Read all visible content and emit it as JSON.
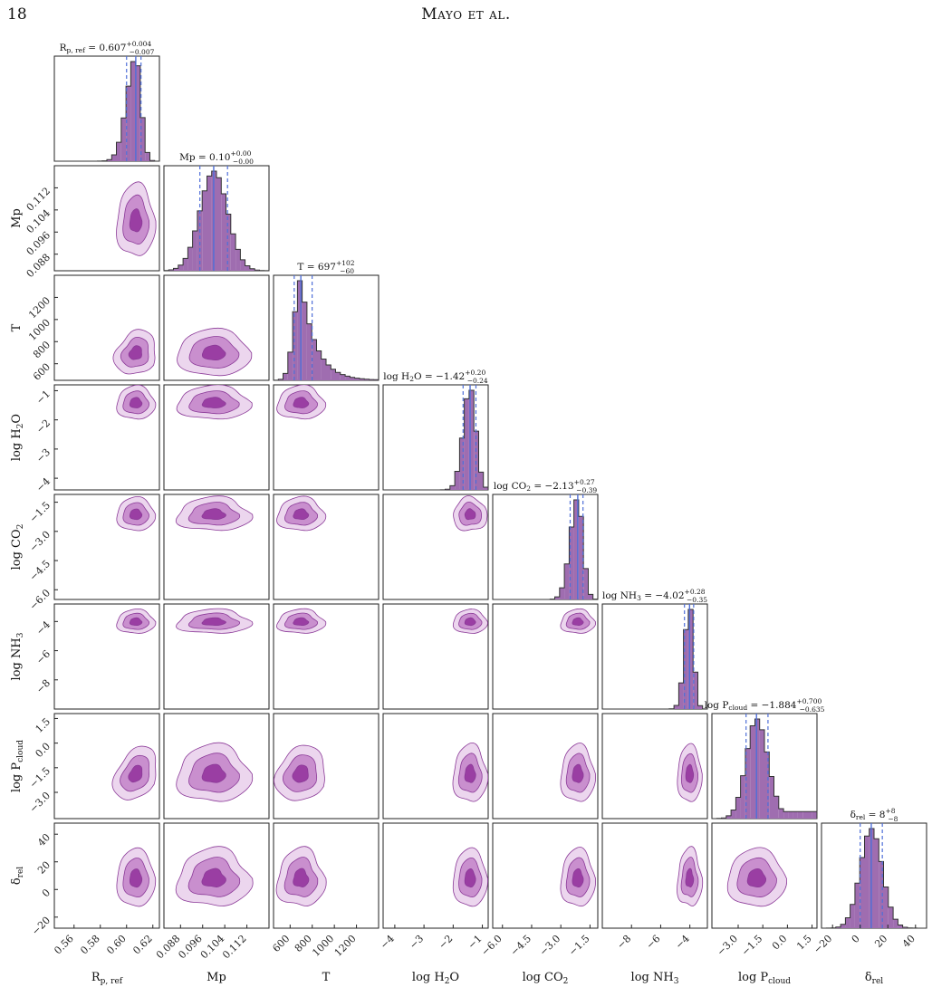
{
  "page": {
    "number": "18",
    "running_head": "Mayo et al."
  },
  "colors": {
    "hist_fill": "#9f6db0",
    "contour_outer": "#ecd6ee",
    "contour_mid": "#c98fce",
    "contour_inner": "#9a3ea3",
    "contour_line": "#8b3a98",
    "median_line": "#4f6fd8",
    "quantile_line": "#4f6fd8"
  },
  "chart_data": {
    "type": "corner",
    "parameters": [
      {
        "key": "rp",
        "label": "R_p, ref",
        "label_main": "R",
        "label_sub": "p, ref",
        "range": [
          0.545,
          0.625
        ],
        "ticks": [
          "0.56",
          "0.58",
          "0.60",
          "0.62"
        ],
        "median": 0.607,
        "q_low": 0.6,
        "q_high": 0.611,
        "title": "R_p, ref = 0.607 +0.004 −0.007",
        "title_main": "R",
        "title_sub": "p, ref",
        "title_value": " = 0.607",
        "title_plus": "+0.004",
        "title_minus": "−0.007"
      },
      {
        "key": "mp",
        "label": "Mp",
        "label_main": "Mp",
        "label_sub": "",
        "range": [
          0.082,
          0.12
        ],
        "ticks": [
          "0.088",
          "0.096",
          "0.104",
          "0.112"
        ],
        "median": 0.1,
        "q_low": 0.095,
        "q_high": 0.105,
        "title": "Mp = 0.10 +0.00 −0.00",
        "title_main": "Mp",
        "title_sub": "",
        "title_value": " = 0.10",
        "title_plus": "+0.00",
        "title_minus": "−0.00"
      },
      {
        "key": "t",
        "label": "T",
        "label_main": "T",
        "label_sub": "",
        "range": [
          450,
          1400
        ],
        "ticks": [
          "600",
          "800",
          "1000",
          "1200"
        ],
        "median": 697,
        "q_low": 637,
        "q_high": 799,
        "title": "T = 697 +102 −60",
        "title_main": "T",
        "title_sub": "",
        "title_value": " = 697",
        "title_plus": "+102",
        "title_minus": "−60"
      },
      {
        "key": "h2o",
        "label": "log H2O",
        "label_main": "log H",
        "label_sub": "2",
        "label_tail": "O",
        "range": [
          -4.4,
          -0.8
        ],
        "ticks": [
          "−4",
          "−3",
          "−2",
          "−1"
        ],
        "tick_values": [
          -4,
          -3,
          -2,
          -1
        ],
        "median": -1.42,
        "q_low": -1.66,
        "q_high": -1.22,
        "title": "log H2O = −1.42 +0.20 −0.24",
        "title_main": "log H",
        "title_sub": "2",
        "title_tail": "O",
        "title_value": " = −1.42",
        "title_plus": "+0.20",
        "title_minus": "−0.24"
      },
      {
        "key": "co2",
        "label": "log CO2",
        "label_main": "log CO",
        "label_sub": "2",
        "range": [
          -6.5,
          -1.1
        ],
        "ticks": [
          "−6.0",
          "−4.5",
          "−3.0",
          "−1.5"
        ],
        "tick_values": [
          -6.0,
          -4.5,
          -3.0,
          -1.5
        ],
        "median": -2.13,
        "q_low": -2.52,
        "q_high": -1.86,
        "title": "log CO2 = −2.13 +0.27 −0.39",
        "title_main": "log CO",
        "title_sub": "2",
        "title_value": " = −2.13",
        "title_plus": "+0.27",
        "title_minus": "−0.39"
      },
      {
        "key": "nh3",
        "label": "log NH3",
        "label_main": "log NH",
        "label_sub": "3",
        "range": [
          -10.0,
          -2.8
        ],
        "ticks": [
          "−8",
          "−6",
          "−4"
        ],
        "tick_values": [
          -8,
          -6,
          -4
        ],
        "median": -4.02,
        "q_low": -4.37,
        "q_high": -3.74,
        "title": "log NH3 = −4.02 +0.28 −0.35",
        "title_main": "log NH",
        "title_sub": "3",
        "title_value": " = −4.02",
        "title_plus": "+0.28",
        "title_minus": "−0.35"
      },
      {
        "key": "pcloud",
        "label": "log P_cloud",
        "label_main": "log P",
        "label_sub": "cloud",
        "range": [
          -4.6,
          1.8
        ],
        "ticks": [
          "−3.0",
          "−1.5",
          "0.0",
          "1.5"
        ],
        "tick_values": [
          -3.0,
          -1.5,
          0.0,
          1.5
        ],
        "median": -1.884,
        "q_low": -2.519,
        "q_high": -1.184,
        "title": "log P_cloud = −1.884 +0.700 −0.635",
        "title_main": "log P",
        "title_sub": "cloud",
        "title_value": " = −1.884",
        "title_plus": "+0.700",
        "title_minus": "−0.635"
      },
      {
        "key": "delta",
        "label": "δ_rel",
        "label_main": "δ",
        "label_sub": "rel",
        "range": [
          -28,
          48
        ],
        "ticks": [
          "−20",
          "0",
          "20",
          "40"
        ],
        "tick_values": [
          -20,
          0,
          20,
          40
        ],
        "median": 8,
        "q_low": 0,
        "q_high": 16,
        "title": "δ_rel = 8 +8 −8",
        "title_main": "δ",
        "title_sub": "rel",
        "title_value": " = 8",
        "title_plus": "+8",
        "title_minus": "−8"
      }
    ],
    "grid": {
      "x_values_from_tick_labels": true
    }
  }
}
